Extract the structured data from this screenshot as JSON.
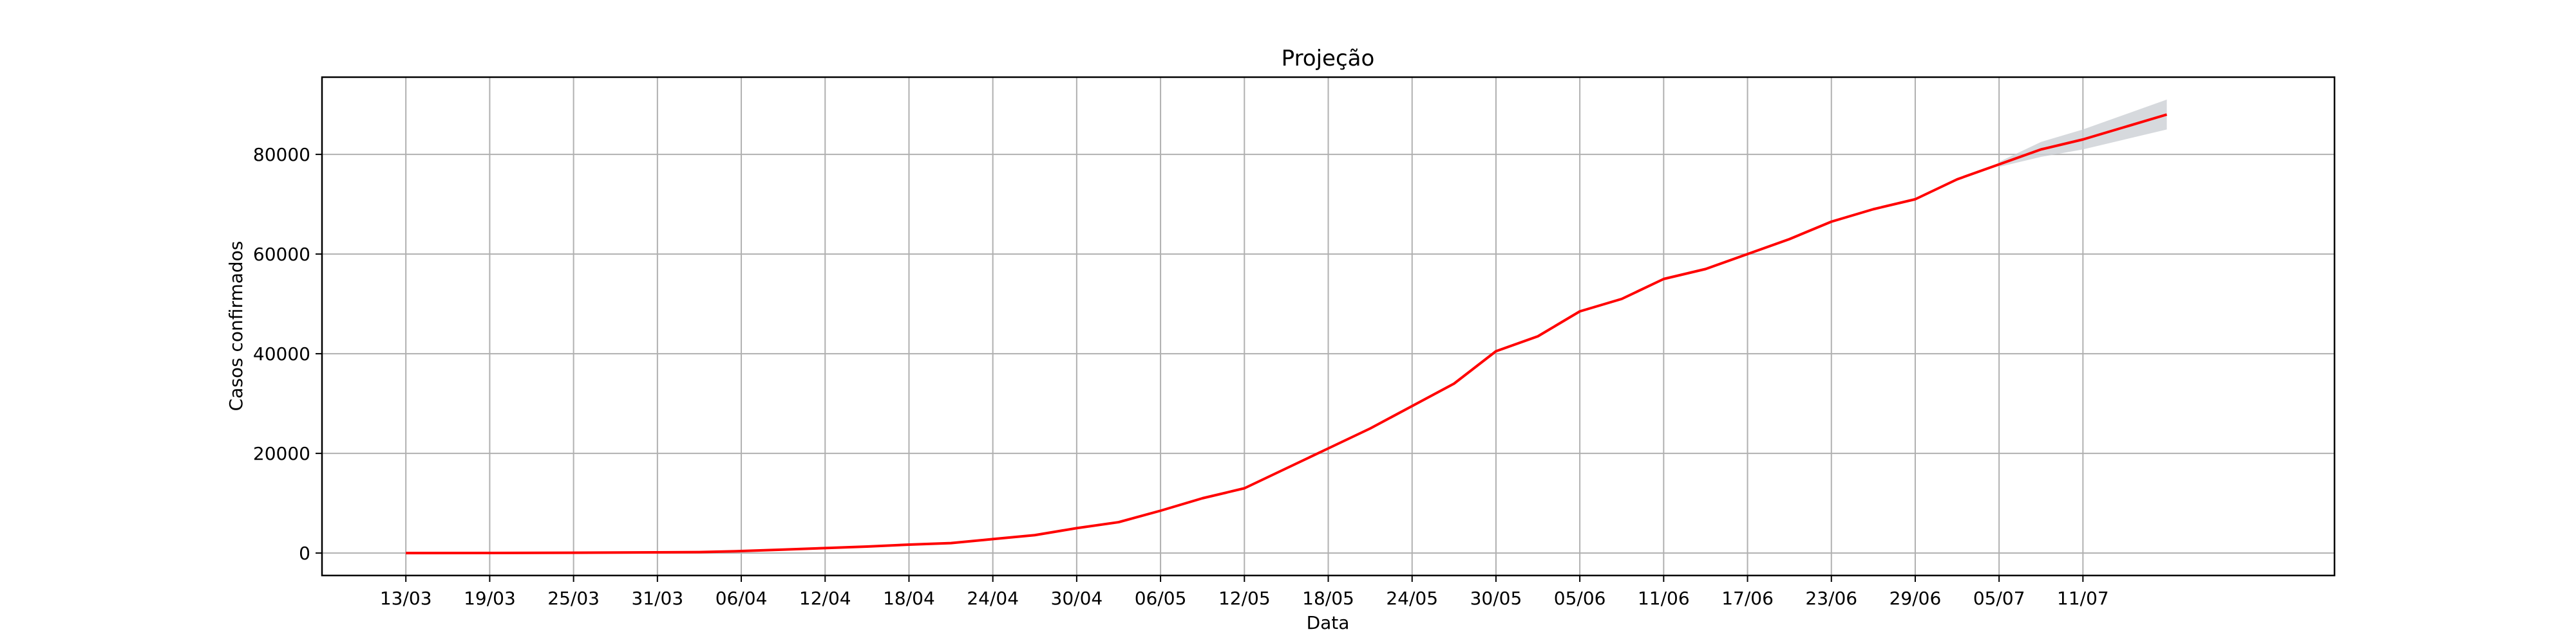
{
  "chart_data": {
    "type": "line",
    "title": "Projeção",
    "xlabel": "Data",
    "ylabel": "Casos confirmados",
    "grid": true,
    "colors": {
      "line": "#ff0000",
      "band": "#c8ccd2",
      "grid": "#b0b0b0",
      "axis": "#000000"
    },
    "x_domain": [
      "2020-03-07",
      "2020-07-29"
    ],
    "ylim": [
      -4500,
      95500
    ],
    "x_ticks": [
      {
        "date": "2020-03-13",
        "label": "13/03"
      },
      {
        "date": "2020-03-19",
        "label": "19/03"
      },
      {
        "date": "2020-03-25",
        "label": "25/03"
      },
      {
        "date": "2020-03-31",
        "label": "31/03"
      },
      {
        "date": "2020-04-06",
        "label": "06/04"
      },
      {
        "date": "2020-04-12",
        "label": "12/04"
      },
      {
        "date": "2020-04-18",
        "label": "18/04"
      },
      {
        "date": "2020-04-24",
        "label": "24/04"
      },
      {
        "date": "2020-04-30",
        "label": "30/04"
      },
      {
        "date": "2020-05-06",
        "label": "06/05"
      },
      {
        "date": "2020-05-12",
        "label": "12/05"
      },
      {
        "date": "2020-05-18",
        "label": "18/05"
      },
      {
        "date": "2020-05-24",
        "label": "24/05"
      },
      {
        "date": "2020-05-30",
        "label": "30/05"
      },
      {
        "date": "2020-06-05",
        "label": "05/06"
      },
      {
        "date": "2020-06-11",
        "label": "11/06"
      },
      {
        "date": "2020-06-17",
        "label": "17/06"
      },
      {
        "date": "2020-06-23",
        "label": "23/06"
      },
      {
        "date": "2020-06-29",
        "label": "29/06"
      },
      {
        "date": "2020-07-05",
        "label": "05/07"
      },
      {
        "date": "2020-07-11",
        "label": "11/07"
      }
    ],
    "y_ticks": [
      {
        "value": 0,
        "label": "0"
      },
      {
        "value": 20000,
        "label": "20000"
      },
      {
        "value": 40000,
        "label": "40000"
      },
      {
        "value": 60000,
        "label": "60000"
      },
      {
        "value": 80000,
        "label": "80000"
      }
    ],
    "series": [
      {
        "points": [
          [
            "2020-03-13",
            0
          ],
          [
            "2020-03-19",
            10
          ],
          [
            "2020-03-25",
            60
          ],
          [
            "2020-03-31",
            150
          ],
          [
            "2020-04-03",
            200
          ],
          [
            "2020-04-06",
            400
          ],
          [
            "2020-04-09",
            700
          ],
          [
            "2020-04-12",
            1000
          ],
          [
            "2020-04-15",
            1300
          ],
          [
            "2020-04-18",
            1700
          ],
          [
            "2020-04-21",
            2000
          ],
          [
            "2020-04-24",
            2800
          ],
          [
            "2020-04-27",
            3600
          ],
          [
            "2020-04-30",
            5000
          ],
          [
            "2020-05-03",
            6200
          ],
          [
            "2020-05-06",
            8500
          ],
          [
            "2020-05-09",
            11000
          ],
          [
            "2020-05-12",
            13000
          ],
          [
            "2020-05-15",
            17000
          ],
          [
            "2020-05-18",
            21000
          ],
          [
            "2020-05-21",
            25000
          ],
          [
            "2020-05-24",
            29500
          ],
          [
            "2020-05-27",
            34000
          ],
          [
            "2020-05-30",
            40500
          ],
          [
            "2020-06-02",
            43500
          ],
          [
            "2020-06-05",
            48500
          ],
          [
            "2020-06-08",
            51000
          ],
          [
            "2020-06-11",
            55000
          ],
          [
            "2020-06-14",
            57000
          ],
          [
            "2020-06-17",
            60000
          ],
          [
            "2020-06-20",
            63000
          ],
          [
            "2020-06-23",
            66500
          ],
          [
            "2020-06-26",
            69000
          ],
          [
            "2020-06-29",
            71000
          ],
          [
            "2020-07-02",
            75000
          ],
          [
            "2020-07-05",
            78000
          ],
          [
            "2020-07-08",
            81000
          ],
          [
            "2020-07-11",
            83000
          ],
          [
            "2020-07-14",
            85500
          ],
          [
            "2020-07-17",
            88000
          ]
        ]
      }
    ],
    "band": [
      [
        "2020-07-05",
        77500,
        78500
      ],
      [
        "2020-07-08",
        79500,
        82500
      ],
      [
        "2020-07-11",
        81000,
        85000
      ],
      [
        "2020-07-14",
        83000,
        88000
      ],
      [
        "2020-07-17",
        85000,
        91000
      ]
    ]
  }
}
